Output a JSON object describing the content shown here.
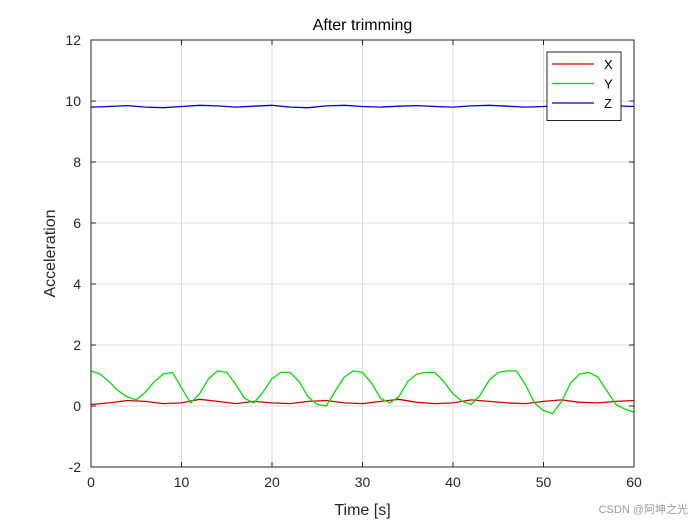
{
  "chart_data": {
    "type": "line",
    "title": "After trimming",
    "xlabel": "Time [s]",
    "ylabel": "Acceleration",
    "xlim": [
      0,
      60
    ],
    "ylim": [
      -2,
      12
    ],
    "xticks": [
      0,
      10,
      20,
      30,
      40,
      50,
      60
    ],
    "yticks": [
      -2,
      0,
      2,
      4,
      6,
      8,
      10,
      12
    ],
    "grid": true,
    "legend_position": "top-right",
    "series": [
      {
        "name": "X",
        "color": "#d40000",
        "x": [
          0,
          2,
          4,
          6,
          8,
          10,
          12,
          14,
          16,
          18,
          20,
          22,
          24,
          26,
          28,
          30,
          32,
          34,
          36,
          38,
          40,
          42,
          44,
          46,
          48,
          50,
          52,
          54,
          56,
          58,
          60
        ],
        "values": [
          0.05,
          0.1,
          0.18,
          0.15,
          0.08,
          0.1,
          0.22,
          0.15,
          0.08,
          0.15,
          0.1,
          0.08,
          0.15,
          0.18,
          0.1,
          0.08,
          0.15,
          0.22,
          0.12,
          0.08,
          0.1,
          0.2,
          0.15,
          0.1,
          0.08,
          0.15,
          0.2,
          0.12,
          0.1,
          0.15,
          0.18
        ]
      },
      {
        "name": "Y",
        "color": "#00e000",
        "x": [
          0,
          1,
          2,
          3,
          4,
          5,
          6,
          7,
          8,
          9,
          10,
          11,
          12,
          13,
          14,
          15,
          16,
          17,
          18,
          19,
          20,
          21,
          22,
          23,
          24,
          25,
          26,
          27,
          28,
          29,
          30,
          31,
          32,
          33,
          34,
          35,
          36,
          37,
          38,
          39,
          40,
          41,
          42,
          43,
          44,
          45,
          46,
          47,
          48,
          49,
          50,
          51,
          52,
          53,
          54,
          55,
          56,
          57,
          58,
          59,
          60
        ],
        "values": [
          1.15,
          1.05,
          0.8,
          0.5,
          0.3,
          0.2,
          0.45,
          0.8,
          1.05,
          1.1,
          0.6,
          0.1,
          0.4,
          0.9,
          1.15,
          1.1,
          0.7,
          0.25,
          0.1,
          0.45,
          0.9,
          1.1,
          1.1,
          0.8,
          0.3,
          0.05,
          0.0,
          0.5,
          0.95,
          1.15,
          1.1,
          0.75,
          0.25,
          0.1,
          0.3,
          0.8,
          1.05,
          1.1,
          1.1,
          0.8,
          0.4,
          0.15,
          0.05,
          0.35,
          0.85,
          1.1,
          1.15,
          1.15,
          0.7,
          0.1,
          -0.15,
          -0.25,
          0.15,
          0.75,
          1.05,
          1.1,
          0.95,
          0.5,
          0.05,
          -0.1,
          -0.2
        ]
      },
      {
        "name": "Z",
        "color": "#0000cc",
        "x": [
          0,
          2,
          4,
          6,
          8,
          10,
          12,
          14,
          16,
          18,
          20,
          22,
          24,
          26,
          28,
          30,
          32,
          34,
          36,
          38,
          40,
          42,
          44,
          46,
          48,
          50,
          52,
          54,
          56,
          58,
          60
        ],
        "values": [
          9.8,
          9.82,
          9.85,
          9.8,
          9.78,
          9.82,
          9.86,
          9.84,
          9.8,
          9.83,
          9.86,
          9.8,
          9.78,
          9.84,
          9.86,
          9.82,
          9.8,
          9.83,
          9.85,
          9.82,
          9.8,
          9.84,
          9.86,
          9.83,
          9.8,
          9.82,
          9.86,
          9.84,
          9.82,
          9.84,
          9.82
        ]
      }
    ]
  },
  "watermark": "CSDN @阿坤之光"
}
